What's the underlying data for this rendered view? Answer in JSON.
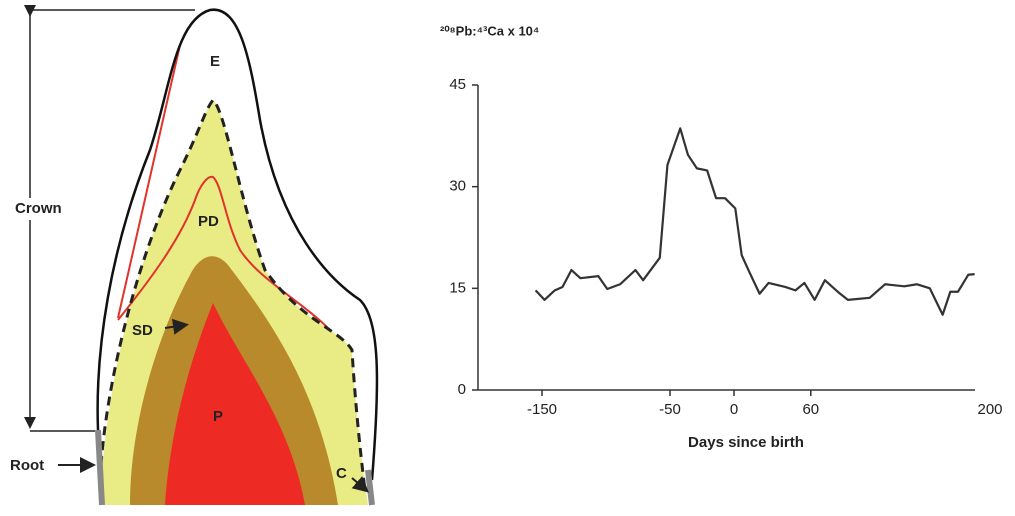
{
  "diagram": {
    "labels": {
      "enamel": "E",
      "primary_dentin": "PD",
      "secondary_dentin": "SD",
      "pulp": "P",
      "cementum": "C",
      "crown": "Crown",
      "root": "Root"
    }
  },
  "chart_data": {
    "type": "line",
    "title": "²⁰⁸Pb:⁴³Ca x 10⁴",
    "x_label": "Days since birth",
    "x": [
      -155,
      -148,
      -140,
      -134,
      -127,
      -120,
      -106,
      -99,
      -89,
      -77,
      -71,
      -58,
      -52,
      -42,
      -36,
      -29,
      -21,
      -14,
      -7,
      1,
      6,
      12,
      20,
      27,
      40,
      48,
      55,
      63,
      71,
      81,
      89,
      106,
      118,
      133,
      143,
      153,
      163,
      169,
      175,
      183,
      188
    ],
    "series": [
      {
        "color": "#333333",
        "values": [
          14.7,
          13.3,
          14.7,
          15.2,
          17.7,
          16.5,
          16.8,
          14.9,
          15.6,
          17.7,
          16.2,
          19.5,
          33.2,
          38.6,
          34.7,
          32.7,
          32.4,
          28.3,
          28.3,
          26.8,
          19.9,
          17.4,
          14.2,
          15.8,
          15.2,
          14.7,
          15.8,
          13.3,
          16.2,
          14.5,
          13.3,
          13.6,
          15.6,
          15.3,
          15.6,
          15.0,
          11.1,
          14.5,
          14.5,
          17.0,
          17.1
        ]
      }
    ],
    "xlim": [
      -200,
      200
    ],
    "xticks": [
      -150,
      -50,
      0,
      60,
      200
    ],
    "ylim": [
      0,
      45
    ],
    "yticks": [
      0,
      15,
      30,
      45
    ],
    "grid": false
  }
}
